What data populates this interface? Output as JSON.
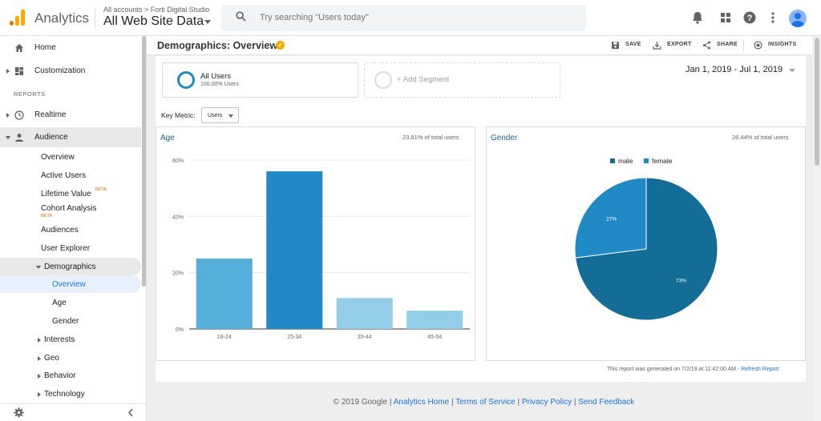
{
  "app": {
    "name": "Analytics"
  },
  "account": {
    "breadcrumb": "All accounts > Forti Digital Studio",
    "property": "All Web Site Data"
  },
  "search": {
    "placeholder": "Try searching \"Users today\""
  },
  "sidebar": {
    "home": "Home",
    "customization": "Customization",
    "reports_heading": "REPORTS",
    "realtime": "Realtime",
    "audience": "Audience",
    "audience_items": {
      "overview": "Overview",
      "active_users": "Active Users",
      "lifetime_value": "Lifetime Value",
      "cohort_analysis": "Cohort Analysis",
      "audiences": "Audiences",
      "user_explorer": "User Explorer",
      "demographics": "Demographics",
      "demo_overview": "Overview",
      "demo_age": "Age",
      "demo_gender": "Gender",
      "interests": "Interests",
      "geo": "Geo",
      "behavior": "Behavior",
      "technology": "Technology"
    },
    "beta_badge": "BETA"
  },
  "page": {
    "title": "Demographics: Overview",
    "actions": {
      "save": "SAVE",
      "export": "EXPORT",
      "share": "SHARE",
      "insights": "INSIGHTS"
    },
    "segment": {
      "name": "All Users",
      "percent": "100.00% Users",
      "add": "+ Add Segment"
    },
    "date_range": "Jan 1, 2019 - Jul 1, 2019",
    "key_metric_label": "Key Metric:",
    "key_metric_value": "Users",
    "report_note": "This report was generated on 7/2/19 at 11:42:00 AM - ",
    "refresh": "Refresh Report"
  },
  "age_panel": {
    "title": "Age",
    "share": "23.81% of total users"
  },
  "gender_panel": {
    "title": "Gender",
    "share": "26.44% of total users"
  },
  "chart_data": [
    {
      "type": "bar",
      "title": "Age",
      "categories": [
        "18-24",
        "25-34",
        "35-44",
        "45-54"
      ],
      "values": [
        25,
        56,
        11,
        6.5
      ],
      "ytick_labels": [
        "0%",
        "20%",
        "40%",
        "60%"
      ],
      "ylim": [
        0,
        60
      ],
      "grid": true,
      "colors": [
        "#56aedb",
        "#1f8ac6",
        "#93cde8",
        "#93cde8"
      ]
    },
    {
      "type": "pie",
      "title": "Gender",
      "series": [
        {
          "name": "male",
          "value": 73,
          "label": "73%",
          "color": "#146d96"
        },
        {
          "name": "female",
          "value": 27,
          "label": "27%",
          "color": "#1f8ac6"
        }
      ],
      "legend": "top"
    }
  ],
  "footer": {
    "copyright": "© 2019 Google",
    "links": [
      "Analytics Home",
      "Terms of Service",
      "Privacy Policy",
      "Send Feedback"
    ],
    "separator": "|"
  },
  "colors": {
    "accent": "#1a73e8",
    "brand": "#f9ab00"
  }
}
